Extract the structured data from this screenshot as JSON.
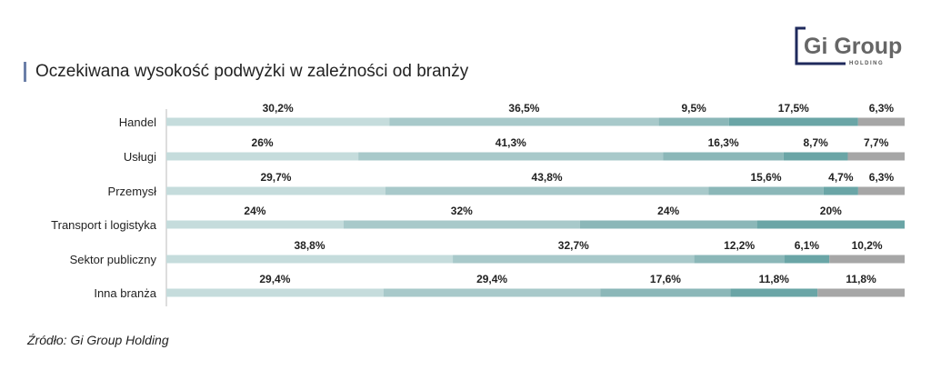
{
  "title": "Oczekiwana wysokość podwyżki w zależności od branży",
  "source": "Źródło: Gi Group Holding",
  "logo": {
    "name": "Gi Group",
    "sub": "HOLDING"
  },
  "colors": [
    "#c5dcdc",
    "#a8c9ca",
    "#8bb7b8",
    "#6aa5a6",
    "#a6a6a6"
  ],
  "chart_data": {
    "type": "bar",
    "stacked": true,
    "orientation": "horizontal",
    "categories": [
      "Handel",
      "Usługi",
      "Przemysł",
      "Transport i logistyka",
      "Sektor publiczny",
      "Inna branża"
    ],
    "values": [
      [
        30.2,
        36.5,
        9.5,
        17.5,
        6.3
      ],
      [
        26,
        41.3,
        16.3,
        8.7,
        7.7
      ],
      [
        29.7,
        43.8,
        15.6,
        4.7,
        6.3
      ],
      [
        24,
        32,
        24,
        20
      ],
      [
        38.8,
        32.7,
        12.2,
        6.1,
        10.2
      ],
      [
        29.4,
        29.4,
        17.6,
        11.8,
        11.8
      ]
    ],
    "labels": [
      [
        "30,2%",
        "36,5%",
        "9,5%",
        "17,5%",
        "6,3%"
      ],
      [
        "26%",
        "41,3%",
        "16,3%",
        "8,7%",
        "7,7%"
      ],
      [
        "29,7%",
        "43,8%",
        "15,6%",
        "4,7%",
        "6,3%"
      ],
      [
        "24%",
        "32%",
        "24%",
        "20%"
      ],
      [
        "38,8%",
        "32,7%",
        "12,2%",
        "6,1%",
        "10,2%"
      ],
      [
        "29,4%",
        "29,4%",
        "17,6%",
        "11,8%",
        "11,8%"
      ]
    ],
    "xlim": [
      0,
      100
    ]
  }
}
